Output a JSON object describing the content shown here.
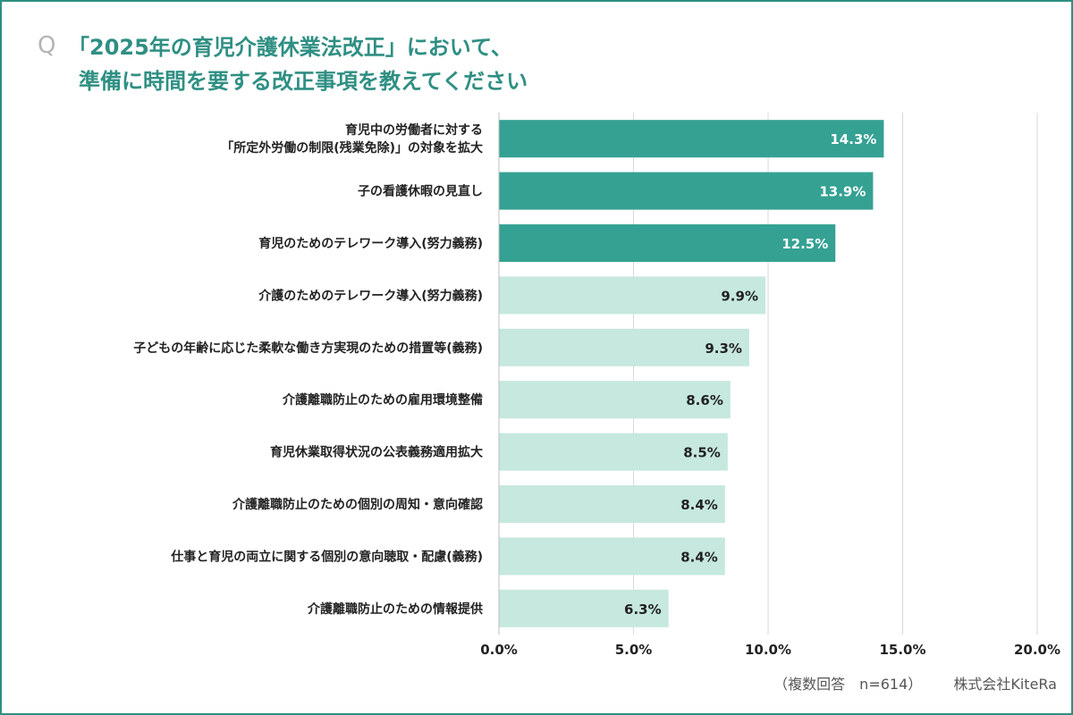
{
  "header": {
    "q_mark": "Q",
    "title_line1": "「2025年の育児介護休業法改正」において、",
    "title_line2": "準備に時間を要する改正事項を教えてください"
  },
  "footer": {
    "note": "（複数回答　n=614）",
    "company": "株式会社KiteRa"
  },
  "colors": {
    "accent": "#2f8f83",
    "bar_dark": "#35a193",
    "bar_light": "#c6e8de",
    "grid": "#d9d9d9"
  },
  "chart_data": {
    "type": "bar",
    "orientation": "horizontal",
    "categories": [
      [
        "育児中の労働者に対する",
        "「所定外労働の制限(残業免除)」の対象を拡大"
      ],
      [
        "子の看護休暇の見直し"
      ],
      [
        "育児のためのテレワーク導入(努力義務)"
      ],
      [
        "介護のためのテレワーク導入(努力義務)"
      ],
      [
        "子どもの年齢に応じた柔軟な働き方実現のための措置等(義務)"
      ],
      [
        "介護離職防止のための雇用環境整備"
      ],
      [
        "育児休業取得状況の公表義務適用拡大"
      ],
      [
        "介護離職防止のための個別の周知・意向確認"
      ],
      [
        "仕事と育児の両立に関する個別の意向聴取・配慮(義務)"
      ],
      [
        "介護離職防止のための情報提供"
      ]
    ],
    "values": [
      14.3,
      13.9,
      12.5,
      9.9,
      9.3,
      8.6,
      8.5,
      8.4,
      8.4,
      6.3
    ],
    "value_labels": [
      "14.3%",
      "13.9%",
      "12.5%",
      "9.9%",
      "9.3%",
      "8.6%",
      "8.5%",
      "8.4%",
      "8.4%",
      "6.3%"
    ],
    "highlight_top": 3,
    "xlim": [
      0,
      20
    ],
    "x_ticks": [
      0,
      5,
      10,
      15,
      20
    ],
    "x_tick_labels": [
      "0.0%",
      "5.0%",
      "10.0%",
      "15.0%",
      "20.0%"
    ],
    "grid": true
  }
}
